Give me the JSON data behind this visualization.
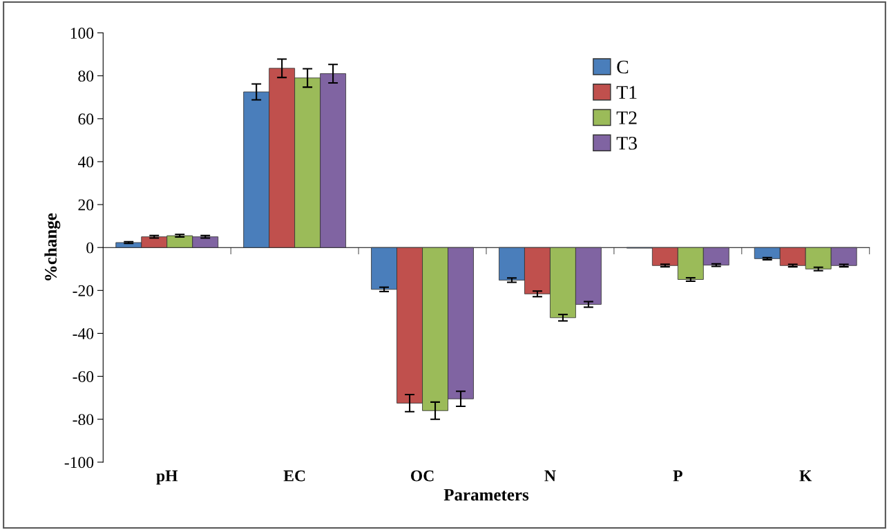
{
  "chart_data": {
    "type": "bar",
    "xlabel": "Parameters",
    "ylabel": "%change",
    "categories": [
      "pH",
      "EC",
      "OC",
      "N",
      "P",
      "K"
    ],
    "series": [
      {
        "name": "C",
        "color": "#4a7ebb",
        "values": [
          2.3,
          72.5,
          -19.5,
          -15.2,
          -0.3,
          -5.2
        ],
        "errors": [
          0.4,
          3.7,
          1,
          1,
          null,
          0.5
        ]
      },
      {
        "name": "T1",
        "color": "#c0504d",
        "values": [
          5,
          83.5,
          -72.5,
          -21.6,
          -8.4,
          -8.4
        ],
        "errors": [
          0.6,
          4.3,
          4,
          1.3,
          0.6,
          0.6
        ]
      },
      {
        "name": "T2",
        "color": "#9bbb59",
        "values": [
          5.5,
          79,
          -76,
          -32.7,
          -14.9,
          -10
        ],
        "errors": [
          0.6,
          4.3,
          4,
          1.5,
          0.8,
          0.8
        ]
      },
      {
        "name": "T3",
        "color": "#8064a2",
        "values": [
          5,
          81,
          -70.5,
          -26.5,
          -8.2,
          -8.4
        ],
        "errors": [
          0.6,
          4.3,
          3.5,
          1.3,
          0.6,
          0.6
        ]
      }
    ],
    "ylim": [
      -100,
      100
    ],
    "yticks": [
      -100,
      -80,
      -60,
      -40,
      -20,
      0,
      20,
      40,
      60,
      80,
      100
    ],
    "legend": "top right"
  }
}
